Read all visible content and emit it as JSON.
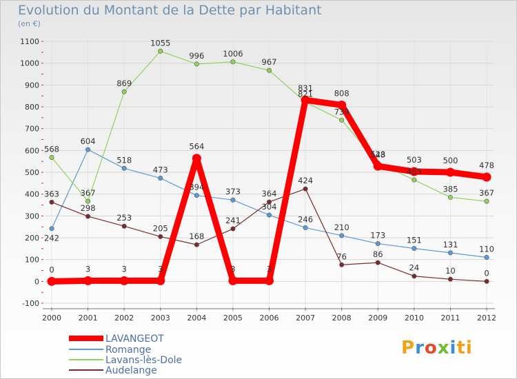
{
  "chart_data": {
    "type": "line",
    "title": "Evolution du Montant de la Dette par Habitant",
    "subtitle": "(en €)",
    "x": [
      "2000",
      "2001",
      "2002",
      "2003",
      "2004",
      "2005",
      "2006",
      "2007",
      "2008",
      "2009",
      "2010",
      "2011",
      "2012"
    ],
    "yticks": [
      -100,
      0,
      100,
      200,
      300,
      400,
      500,
      600,
      700,
      800,
      900,
      1000,
      1100
    ],
    "ylim": [
      -100,
      1100
    ],
    "grid": true,
    "legend_position": "bottom-left",
    "series": [
      {
        "name": "Romange",
        "color": "#5b9bd5",
        "values": [
          242,
          604,
          518,
          473,
          394,
          373,
          304,
          246,
          210,
          173,
          151,
          131,
          110
        ]
      },
      {
        "name": "Lavans-lès-Dole",
        "color": "#90d35a",
        "values": [
          568,
          367,
          869,
          1055,
          996,
          1006,
          967,
          821,
          739,
          543,
          465,
          385,
          367
        ]
      },
      {
        "name": "Audelange",
        "color": "#7a2a2a",
        "values": [
          363,
          298,
          253,
          205,
          168,
          241,
          364,
          424,
          76,
          86,
          24,
          10,
          0
        ]
      },
      {
        "name": "LAVANGEOT",
        "color": "#ff0000",
        "values": [
          0,
          3,
          3,
          3,
          564,
          3,
          3,
          831,
          808,
          528,
          503,
          500,
          478
        ]
      }
    ],
    "legend_order": [
      "LAVANGEOT",
      "Romange",
      "Lavans-lès-Dole",
      "Audelange"
    ]
  },
  "logo": {
    "letters": [
      "P",
      "r",
      "o",
      "x",
      "i",
      "t",
      "i"
    ]
  }
}
